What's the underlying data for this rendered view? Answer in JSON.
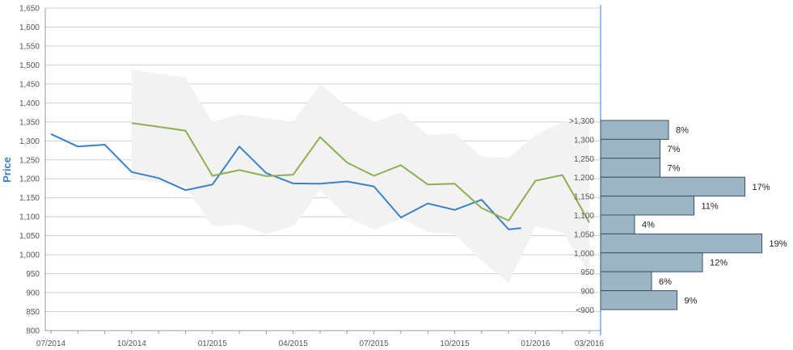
{
  "chart_data": {
    "type": "line",
    "ylabel": "Price",
    "ylim": [
      800,
      1650
    ],
    "y_ticks": [
      "800",
      "850",
      "900",
      "950",
      "1,000",
      "1,050",
      "1,100",
      "1,150",
      "1,200",
      "1,250",
      "1,300",
      "1,350",
      "1,400",
      "1,450",
      "1,500",
      "1,550",
      "1,600",
      "1,650"
    ],
    "x_tick_labels": [
      "07/2014",
      "10/2014",
      "01/2015",
      "04/2015",
      "07/2015",
      "10/2015",
      "01/2016",
      "03/2016"
    ],
    "x_tick_dates": [
      "2014-07",
      "2014-10",
      "2015-01",
      "2015-04",
      "2015-07",
      "2015-10",
      "2016-01",
      "2016-03"
    ],
    "grid": true,
    "series": [
      {
        "color": "#3a82c9",
        "points": [
          [
            "2014-07",
            1318
          ],
          [
            "2014-08",
            1285
          ],
          [
            "2014-09",
            1290
          ],
          [
            "2014-10",
            1218
          ],
          [
            "2014-11",
            1202
          ],
          [
            "2014-12",
            1170
          ],
          [
            "2015-01",
            1185
          ],
          [
            "2015-02",
            1285
          ],
          [
            "2015-03",
            1215
          ],
          [
            "2015-04",
            1188
          ],
          [
            "2015-05",
            1187
          ],
          [
            "2015-06",
            1193
          ],
          [
            "2015-07",
            1180
          ],
          [
            "2015-08",
            1098
          ],
          [
            "2015-09",
            1135
          ],
          [
            "2015-10",
            1118
          ],
          [
            "2015-11",
            1145
          ],
          [
            "2015-12",
            1067
          ],
          [
            "2015-12-15",
            1070
          ]
        ]
      },
      {
        "color": "#8db050",
        "points": [
          [
            "2014-10",
            1347
          ],
          [
            "2014-11",
            1337
          ],
          [
            "2014-12",
            1327
          ],
          [
            "2015-01",
            1208
          ],
          [
            "2015-02",
            1223
          ],
          [
            "2015-03",
            1207
          ],
          [
            "2015-04",
            1211
          ],
          [
            "2015-05",
            1310
          ],
          [
            "2015-06",
            1243
          ],
          [
            "2015-07",
            1208
          ],
          [
            "2015-08",
            1236
          ],
          [
            "2015-09",
            1185
          ],
          [
            "2015-10",
            1187
          ],
          [
            "2015-11",
            1123
          ],
          [
            "2015-12",
            1090
          ],
          [
            "2016-01",
            1195
          ],
          [
            "2016-02",
            1210
          ],
          [
            "2016-03",
            1085
          ]
        ]
      }
    ],
    "band": {
      "color": "#f2f2f2",
      "upper": [
        [
          "2014-10",
          1487
        ],
        [
          "2014-11",
          1477
        ],
        [
          "2014-12",
          1467
        ],
        [
          "2015-01",
          1350
        ],
        [
          "2015-02",
          1370
        ],
        [
          "2015-03",
          1360
        ],
        [
          "2015-04",
          1350
        ],
        [
          "2015-05",
          1450
        ],
        [
          "2015-06",
          1390
        ],
        [
          "2015-07",
          1350
        ],
        [
          "2015-08",
          1375
        ],
        [
          "2015-09",
          1315
        ],
        [
          "2015-10",
          1320
        ],
        [
          "2015-11",
          1258
        ],
        [
          "2015-12",
          1255
        ],
        [
          "2016-01",
          1315
        ],
        [
          "2016-02",
          1350
        ],
        [
          "2016-03",
          1350
        ]
      ],
      "lower": [
        [
          "2014-10",
          1200
        ],
        [
          "2014-11",
          1190
        ],
        [
          "2014-12",
          1180
        ],
        [
          "2015-01",
          1075
        ],
        [
          "2015-02",
          1080
        ],
        [
          "2015-03",
          1055
        ],
        [
          "2015-04",
          1075
        ],
        [
          "2015-05",
          1170
        ],
        [
          "2015-06",
          1100
        ],
        [
          "2015-07",
          1065
        ],
        [
          "2015-08",
          1095
        ],
        [
          "2015-09",
          1060
        ],
        [
          "2015-10",
          1055
        ],
        [
          "2015-11",
          985
        ],
        [
          "2015-12",
          925
        ],
        [
          "2016-01",
          1075
        ],
        [
          "2016-02",
          1060
        ],
        [
          "2016-03",
          950
        ]
      ]
    },
    "distribution": {
      "type": "bar",
      "color": "#9cb4c4",
      "categories": [
        ">1,300",
        "1,300",
        "1,250",
        "1,200",
        "1,150",
        "1,100",
        "1,050",
        "1,000",
        "950",
        "900",
        "<900"
      ],
      "values": [
        8,
        7,
        7,
        17,
        11,
        4,
        19,
        12,
        6,
        9,
        0
      ],
      "labels": [
        "8%",
        "7%",
        "7%",
        "17%",
        "11%",
        "4%",
        "19%",
        "12%",
        "6%",
        "9%",
        ""
      ]
    }
  }
}
